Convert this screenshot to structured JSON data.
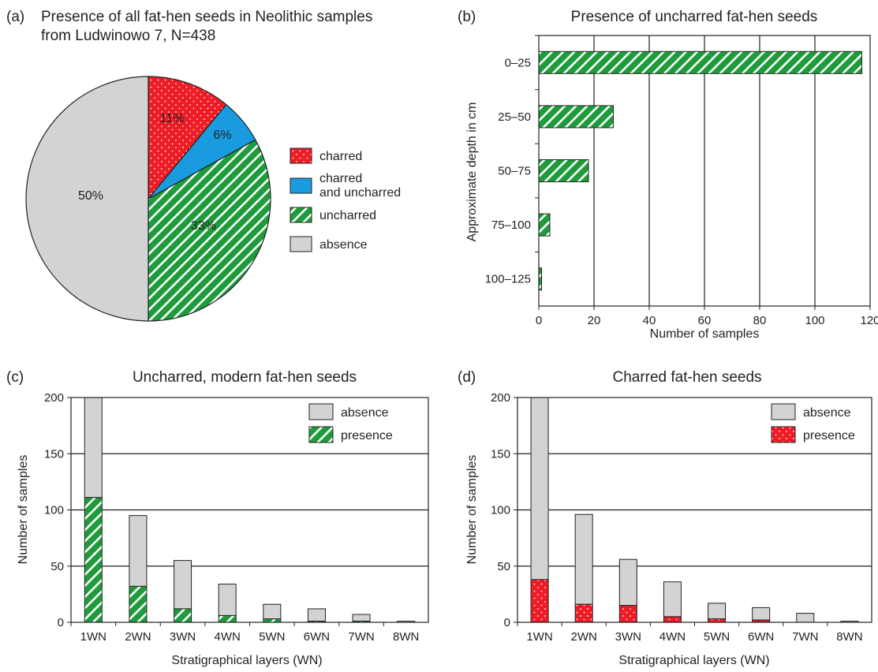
{
  "colors": {
    "charred": "#ee1c25",
    "both": "#1a9be0",
    "uncharred": "#1e9b3a",
    "absence": "#d3d3d3",
    "stroke": "#222222"
  },
  "chart_data": [
    {
      "type": "pie",
      "panel": "(a)",
      "title": "Presence of all fat-hen seeds in Neolithic samples",
      "title2": "from Ludwinowo 7, N=438",
      "slices": [
        {
          "name": "charred",
          "value": 11,
          "label": "11%",
          "pattern": "dots"
        },
        {
          "name": "charred and uncharred",
          "name_line1": "charred",
          "name_line2": "and uncharred",
          "value": 6,
          "label": "6%",
          "pattern": "solid"
        },
        {
          "name": "uncharred",
          "value": 33,
          "label": "33%",
          "pattern": "hatch"
        },
        {
          "name": "absence",
          "value": 50,
          "label": "50%",
          "pattern": "solid"
        }
      ],
      "legend": "right"
    },
    {
      "type": "bar",
      "orientation": "horizontal",
      "panel": "(b)",
      "title": "Presence of uncharred fat-hen seeds",
      "ylabel": "Approximate depth in cm",
      "xlabel": "Number of samples",
      "categories": [
        "0–25",
        "25–50",
        "50–75",
        "75–100",
        "100–125"
      ],
      "values": [
        117,
        27,
        18,
        4,
        1
      ],
      "xlim": [
        0,
        120
      ],
      "xticks": [
        "0",
        "20",
        "40",
        "60",
        "80",
        "100",
        "120"
      ],
      "grid": "vertical"
    },
    {
      "type": "bar",
      "stacked": true,
      "panel": "(c)",
      "title": "Uncharred, modern fat-hen seeds",
      "ylabel": "Number of samples",
      "xlabel": "Stratigraphical layers (WN)",
      "categories": [
        "1WN",
        "2WN",
        "3WN",
        "4WN",
        "5WN",
        "6WN",
        "7WN",
        "8WN"
      ],
      "series": [
        {
          "name": "presence",
          "values": [
            111,
            32,
            12,
            6,
            3,
            1,
            1,
            0
          ]
        },
        {
          "name": "absence",
          "values": [
            89,
            63,
            43,
            28,
            13,
            11,
            6,
            1
          ]
        }
      ],
      "legend_order": [
        "absence",
        "presence"
      ],
      "ylim": [
        0,
        200
      ],
      "yticks": [
        "0",
        "50",
        "100",
        "150",
        "200"
      ],
      "grid": "horizontal"
    },
    {
      "type": "bar",
      "stacked": true,
      "panel": "(d)",
      "title": "Charred fat-hen seeds",
      "ylabel": "Number of samples",
      "xlabel": "Stratigraphical layers (WN)",
      "categories": [
        "1WN",
        "2WN",
        "3WN",
        "4WN",
        "5WN",
        "6WN",
        "7WN",
        "8WN"
      ],
      "series": [
        {
          "name": "presence",
          "values": [
            38,
            16,
            15,
            5,
            3,
            2,
            0,
            0
          ]
        },
        {
          "name": "absence",
          "values": [
            162,
            80,
            41,
            31,
            14,
            11,
            8,
            1
          ]
        }
      ],
      "legend_order": [
        "absence",
        "presence"
      ],
      "ylim": [
        0,
        200
      ],
      "yticks": [
        "0",
        "50",
        "100",
        "150",
        "200"
      ],
      "grid": "horizontal"
    }
  ]
}
